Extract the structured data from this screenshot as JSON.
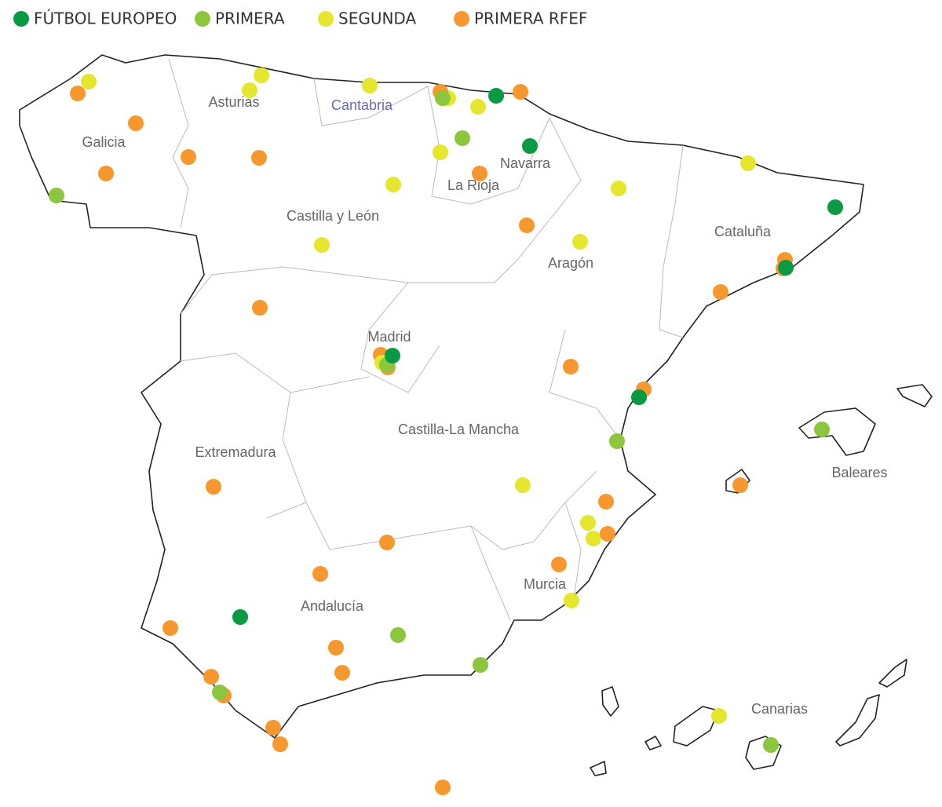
{
  "legend": [
    {
      "label": "FÚTBOL EUROPEO",
      "color": "#0b9a44"
    },
    {
      "label": "PRIMERA",
      "color": "#8cc63f"
    },
    {
      "label": "SEGUNDA",
      "color": "#e6e62e"
    },
    {
      "label": "PRIMERA RFEF",
      "color": "#f7982f"
    }
  ],
  "regions": [
    {
      "label": "Galicia"
    },
    {
      "label": "Asturias"
    },
    {
      "label": "Cantabria"
    },
    {
      "label": "Navarra"
    },
    {
      "label": "La Rioja"
    },
    {
      "label": "Castilla y León"
    },
    {
      "label": "Cataluña"
    },
    {
      "label": "Aragón"
    },
    {
      "label": "Madrid"
    },
    {
      "label": "Castilla-La Mancha"
    },
    {
      "label": "Extremadura"
    },
    {
      "label": "Baleares"
    },
    {
      "label": "Murcia"
    },
    {
      "label": "Andalucía"
    },
    {
      "label": "Canarias"
    }
  ]
}
